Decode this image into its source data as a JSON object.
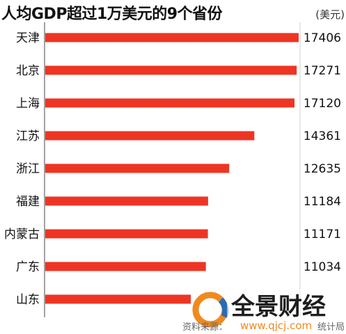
{
  "chart_data": {
    "type": "bar",
    "orientation": "horizontal",
    "title": "人均GDP超过1万美元的9个省份",
    "unit": "(美元)",
    "categories": [
      "天津",
      "北京",
      "上海",
      "江苏",
      "浙江",
      "福建",
      "内蒙古",
      "广东",
      "山东"
    ],
    "values": [
      17406,
      17271,
      17120,
      14361,
      12635,
      11184,
      11171,
      11034,
      10000
    ],
    "value_labels": [
      "17406",
      "17271",
      "17120",
      "14361",
      "12635",
      "11184",
      "11171",
      "11034",
      ""
    ],
    "xlim": [
      0,
      17406
    ],
    "bar_color": "#ee3524",
    "grid": false
  },
  "watermark": {
    "brand": "全景财经",
    "url": "www.qjcj.com",
    "source_fragment": "资料来源：",
    "source_tail": "统计局",
    "logo_colors": [
      "#f08a1e",
      "#2a6bb5"
    ]
  }
}
